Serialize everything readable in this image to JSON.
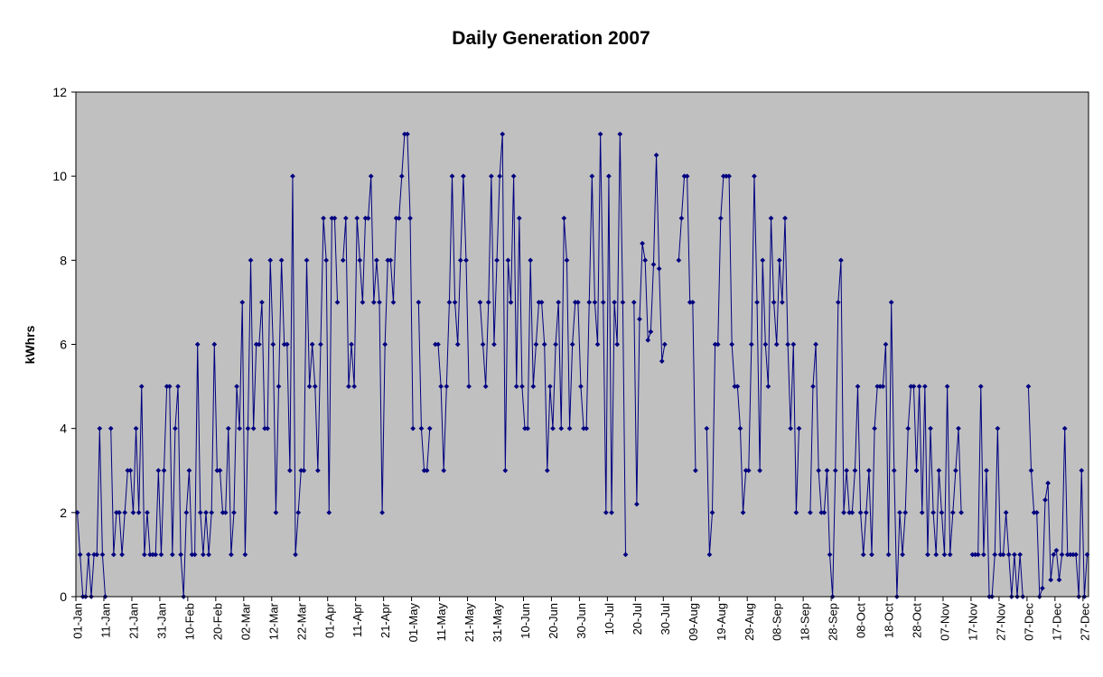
{
  "chart_data": {
    "type": "line",
    "title": "Daily Generation 2007",
    "xlabel": "",
    "ylabel": "kWhrs",
    "ylim": [
      0,
      12
    ],
    "yticks": [
      "0",
      "2",
      "4",
      "6",
      "8",
      "10",
      "12"
    ],
    "grid": false,
    "legend": "none",
    "colors": {
      "plot_background": "#c0c0c0",
      "series": "#000080",
      "axis": "#000000",
      "gridline": "#ffffff"
    },
    "x_tick_labels": [
      "01-Jan",
      "11-Jan",
      "21-Jan",
      "31-Jan",
      "10-Feb",
      "20-Feb",
      "02-Mar",
      "12-Mar",
      "22-Mar",
      "01-Apr",
      "11-Apr",
      "21-Apr",
      "01-May",
      "11-May",
      "21-May",
      "31-May",
      "10-Jun",
      "20-Jun",
      "30-Jun",
      "10-Jul",
      "20-Jul",
      "30-Jul",
      "09-Aug",
      "19-Aug",
      "29-Aug",
      "08-Sep",
      "18-Sep",
      "28-Sep",
      "08-Oct",
      "18-Oct",
      "28-Oct",
      "07-Nov",
      "17-Nov",
      "27-Nov",
      "07-Dec",
      "17-Dec",
      "27-Dec"
    ],
    "series": [
      {
        "values": [
          2,
          1,
          0,
          0,
          1,
          0,
          1,
          1,
          4,
          1,
          0,
          null,
          4,
          1,
          2,
          2,
          1,
          2,
          3,
          3,
          2,
          4,
          2,
          5,
          1,
          2,
          1,
          1,
          1,
          3,
          1,
          3,
          5,
          5,
          1,
          4,
          5,
          1,
          0,
          2,
          3,
          1,
          1,
          6,
          2,
          1,
          2,
          1,
          2,
          6,
          3,
          3,
          2,
          2,
          4,
          1,
          2,
          5,
          4,
          7,
          1,
          4,
          8,
          4,
          6,
          6,
          7,
          4,
          4,
          8,
          6,
          2,
          5,
          8,
          6,
          6,
          3,
          10,
          1,
          2,
          3,
          3,
          8,
          5,
          6,
          5,
          3,
          6,
          9,
          8,
          2,
          9,
          9,
          7,
          null,
          8,
          9,
          5,
          6,
          5,
          9,
          8,
          7,
          9,
          9,
          10,
          7,
          8,
          7,
          2,
          6,
          8,
          8,
          7,
          9,
          9,
          10,
          11,
          11,
          9,
          4,
          null,
          7,
          4,
          3,
          3,
          4,
          null,
          6,
          6,
          5,
          3,
          5,
          7,
          10,
          7,
          6,
          8,
          10,
          8,
          5,
          null,
          null,
          null,
          7,
          6,
          5,
          7,
          10,
          6,
          8,
          10,
          11,
          3,
          8,
          7,
          10,
          5,
          9,
          5,
          4,
          4,
          8,
          5,
          6,
          7,
          7,
          6,
          3,
          5,
          4,
          6,
          7,
          4,
          9,
          8,
          4,
          6,
          7,
          7,
          5,
          4,
          4,
          7,
          10,
          7,
          6,
          11,
          7,
          2,
          10,
          2,
          7,
          6,
          11,
          7,
          1,
          null,
          null,
          7,
          2.2,
          6.6,
          8.4,
          8,
          6.1,
          6.3,
          7.9,
          10.5,
          7.8,
          5.6,
          6,
          null,
          null,
          null,
          null,
          8,
          9,
          10,
          10,
          7,
          7,
          3,
          null,
          null,
          null,
          4,
          1,
          2,
          6,
          6,
          9,
          10,
          10,
          10,
          6,
          5,
          5,
          4,
          2,
          3,
          3,
          6,
          10,
          7,
          3,
          8,
          6,
          5,
          9,
          7,
          6,
          8,
          7,
          9,
          6,
          4,
          6,
          2,
          4,
          null,
          null,
          null,
          2,
          5,
          6,
          3,
          2,
          2,
          3,
          1,
          0,
          3,
          7,
          8,
          2,
          3,
          2,
          2,
          3,
          5,
          2,
          1,
          2,
          3,
          1,
          4,
          5,
          5,
          5,
          6,
          1,
          7,
          3,
          0,
          2,
          1,
          2,
          4,
          5,
          5,
          3,
          5,
          2,
          5,
          1,
          4,
          2,
          1,
          3,
          2,
          1,
          5,
          1,
          2,
          3,
          4,
          2,
          null,
          null,
          null,
          1,
          1,
          1,
          5,
          1,
          3,
          0,
          0,
          1,
          4,
          1,
          1,
          2,
          1,
          0,
          1,
          0,
          1,
          0,
          null,
          5,
          3,
          2,
          2,
          0,
          0.2,
          2.3,
          2.7,
          0.4,
          1,
          1.1,
          0.4,
          1,
          4,
          1,
          1,
          1,
          1,
          0,
          3,
          0,
          1
        ]
      }
    ]
  }
}
